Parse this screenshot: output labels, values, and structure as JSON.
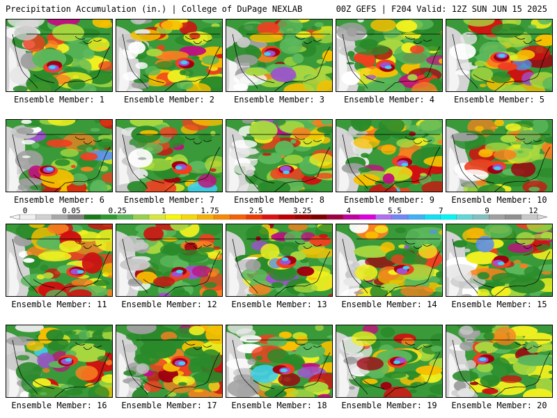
{
  "header": {
    "left": "Precipitation Accumulation (in.) | College of DuPage NEXLAB",
    "right": "00Z GEFS | F204 Valid: 12Z SUN JUN 15 2025"
  },
  "members": [
    {
      "label": "Ensemble Member: 1",
      "seed": 11
    },
    {
      "label": "Ensemble Member: 2",
      "seed": 23
    },
    {
      "label": "Ensemble Member: 3",
      "seed": 37
    },
    {
      "label": "Ensemble Member: 4",
      "seed": 41
    },
    {
      "label": "Ensemble Member: 5",
      "seed": 53
    },
    {
      "label": "Ensemble Member: 6",
      "seed": 67
    },
    {
      "label": "Ensemble Member: 7",
      "seed": 71
    },
    {
      "label": "Ensemble Member: 8",
      "seed": 83
    },
    {
      "label": "Ensemble Member: 9",
      "seed": 97
    },
    {
      "label": "Ensemble Member: 10",
      "seed": 101
    },
    {
      "label": "Ensemble Member: 11",
      "seed": 113
    },
    {
      "label": "Ensemble Member: 12",
      "seed": 127
    },
    {
      "label": "Ensemble Member: 13",
      "seed": 131
    },
    {
      "label": "Ensemble Member: 14",
      "seed": 149
    },
    {
      "label": "Ensemble Member: 15",
      "seed": 151
    },
    {
      "label": "Ensemble Member: 16",
      "seed": 163
    },
    {
      "label": "Ensemble Member: 17",
      "seed": 173
    },
    {
      "label": "Ensemble Member: 18",
      "seed": 181
    },
    {
      "label": "Ensemble Member: 19",
      "seed": 191
    },
    {
      "label": "Ensemble Member: 20",
      "seed": 197
    }
  ],
  "colorbar": {
    "labels": [
      "0",
      "0.05",
      "0.25",
      "1",
      "1.75",
      "2.5",
      "3.25",
      "4",
      "5.5",
      "7",
      "9",
      "12"
    ],
    "colors": [
      "#f0f0f0",
      "#d0d0d0",
      "#a8a8a8",
      "#808080",
      "#1a7a1a",
      "#2e9a2e",
      "#58b858",
      "#98d048",
      "#d8e838",
      "#f8f800",
      "#f8d800",
      "#f8b000",
      "#f88800",
      "#f86000",
      "#f03800",
      "#e01010",
      "#c00000",
      "#a00000",
      "#800000",
      "#a00040",
      "#c000a0",
      "#e000e0",
      "#b070f0",
      "#7088f8",
      "#40b0f8",
      "#10e0f8",
      "#00f8f8",
      "#60d8d8",
      "#80c0c0",
      "#a0a0a0",
      "#909090",
      "#c8c8c8"
    ],
    "ramp": [
      "#ffffff",
      "#e8e8e8",
      "#c8c8c8",
      "#a0a0a0",
      "#2a8a2a",
      "#5cb85c",
      "#a8d840",
      "#f0f020",
      "#f8c000",
      "#f88020",
      "#f04020",
      "#d01010",
      "#a00010",
      "#c01080",
      "#a050d0",
      "#5890f0",
      "#40d0f0"
    ]
  }
}
